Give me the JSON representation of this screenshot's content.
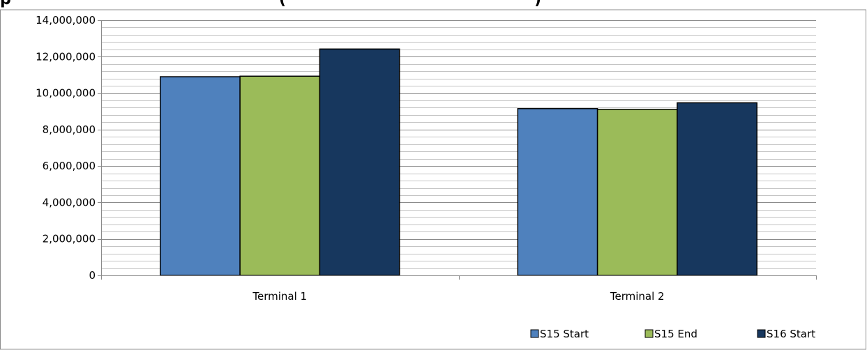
{
  "chart_data": {
    "type": "bar",
    "categories": [
      "Terminal 1",
      "Terminal 2"
    ],
    "series": [
      {
        "name": "S15 Start",
        "color": "#4F81BD",
        "values": [
          10900000,
          9150000
        ]
      },
      {
        "name": "S15 End",
        "color": "#9BBB59",
        "values": [
          10930000,
          9110000
        ]
      },
      {
        "name": "S16 Start",
        "color": "#17375E",
        "values": [
          12420000,
          9470000
        ]
      }
    ],
    "yticks": [
      "0",
      "2,000,000",
      "4,000,000",
      "6,000,000",
      "8,000,000",
      "10,000,000",
      "12,000,000",
      "14,000,000"
    ],
    "ylim": [
      0,
      14000000
    ],
    "major_step": 2000000,
    "minor_step": 400000,
    "grid": true,
    "legend_position": "bottom-right",
    "title_fragment_left": "p",
    "title_fragment_right": "(",
    "title_fragment_end": ")",
    "title_color": "#1F6FB5"
  }
}
